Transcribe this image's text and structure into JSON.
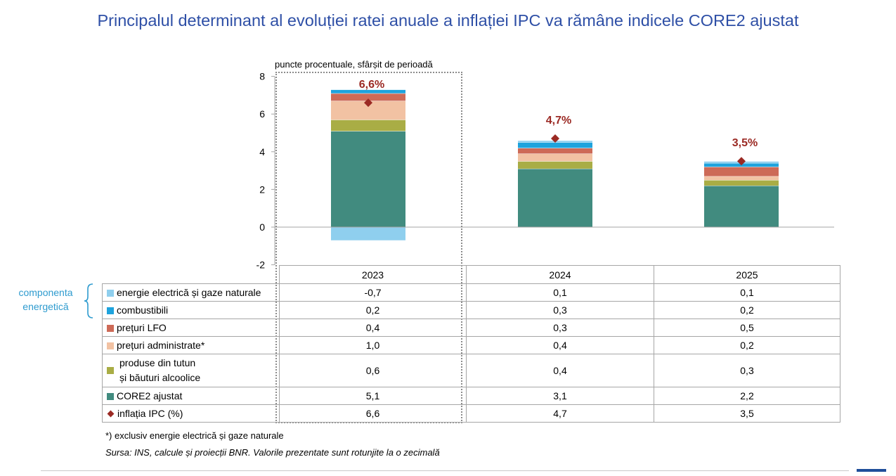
{
  "title": "Principalul determinant al evoluției ratei anuale a inflației IPC va rămâne indicele CORE2 ajustat",
  "chart_data": {
    "type": "bar",
    "stacked": true,
    "ylabel": "puncte procentuale, sfârșit de perioadă",
    "ylim": [
      -2,
      8
    ],
    "yticks": [
      "-2",
      "0",
      "2",
      "4",
      "6",
      "8"
    ],
    "categories": [
      "2023",
      "2024",
      "2025"
    ],
    "series": [
      {
        "key": "energie",
        "name": "energie electrică și gaze naturale",
        "color": "#8fcfee",
        "values": [
          -0.7,
          0.1,
          0.1
        ],
        "labels": [
          "-0,7",
          "0,1",
          "0,1"
        ]
      },
      {
        "key": "combustibili",
        "name": "combustibili",
        "color": "#1ea3dd",
        "values": [
          0.2,
          0.3,
          0.2
        ],
        "labels": [
          "0,2",
          "0,3",
          "0,2"
        ]
      },
      {
        "key": "lfo",
        "name": "prețuri LFO",
        "color": "#cd6a57",
        "values": [
          0.4,
          0.3,
          0.5
        ],
        "labels": [
          "0,4",
          "0,3",
          "0,5"
        ]
      },
      {
        "key": "administrate",
        "name": "prețuri administrate*",
        "color": "#f2c2a3",
        "values": [
          1.0,
          0.4,
          0.2
        ],
        "labels": [
          "1,0",
          "0,4",
          "0,2"
        ]
      },
      {
        "key": "tutun",
        "name_line1": "produse din tutun",
        "name_line2": "și băuturi alcoolice",
        "color": "#a9ad45",
        "values": [
          0.6,
          0.4,
          0.3
        ],
        "labels": [
          "0,6",
          "0,4",
          "0,3"
        ]
      },
      {
        "key": "core2",
        "name": "CORE2 ajustat",
        "color": "#418b7f",
        "values": [
          5.1,
          3.1,
          2.2
        ],
        "labels": [
          "5,1",
          "3,1",
          "2,2"
        ]
      }
    ],
    "line": {
      "name": "inflația IPC (%)",
      "color": "#9b2a24",
      "values": [
        6.6,
        4.7,
        3.5
      ],
      "labels": [
        "6,6",
        "4,7",
        "3,5"
      ],
      "callouts": [
        "6,6%",
        "4,7%",
        "3,5%"
      ]
    }
  },
  "energy_group_label_1": "componenta",
  "energy_group_label_2": "energetică",
  "footnote": "*) exclusiv energie electrică și gaze naturale",
  "source": "Sursa: INS, calcule și proiecții BNR. Valorile prezentate sunt rotunjite la o zecimală"
}
